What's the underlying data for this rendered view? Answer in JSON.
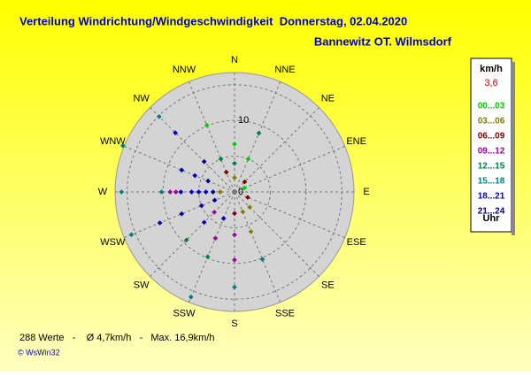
{
  "header": {
    "title": "Verteilung Windrichtung/Windgeschwindigkeit  Donnerstag, 02.04.2020",
    "station": "Bannewitz OT. Wilmsdorf"
  },
  "chart_data": {
    "type": "windrose",
    "directions": [
      "N",
      "NNE",
      "NE",
      "ENE",
      "E",
      "ESE",
      "SE",
      "SSE",
      "S",
      "SSW",
      "SW",
      "WSW",
      "W",
      "WNW",
      "NW",
      "NNW"
    ],
    "rlim": [
      0,
      16.7
    ],
    "rticks": [
      0,
      10
    ],
    "rgrid": [
      5,
      10,
      15
    ],
    "points": {
      "dir_index": [
        12,
        12,
        12,
        12,
        12,
        12,
        12,
        12,
        12,
        12,
        13,
        13,
        13,
        13,
        14,
        14,
        14,
        15,
        15,
        15,
        0,
        0,
        0,
        1,
        1,
        11,
        11,
        11,
        11,
        11,
        10,
        10,
        10,
        9,
        9,
        9,
        9,
        8,
        8,
        8,
        8,
        7,
        7,
        7,
        6,
        5,
        3,
        2
      ],
      "speed": [
        15.8,
        10.2,
        9.0,
        8.2,
        7.5,
        6.0,
        5.0,
        4.0,
        3.0,
        2.0,
        16.9,
        8.0,
        6.0,
        4.0,
        14.9,
        11.7,
        6.0,
        10.1,
        5.0,
        3.0,
        6.7,
        4.0,
        2.0,
        8.9,
        5.0,
        15.6,
        11.3,
        8.0,
        5.0,
        3.0,
        9.5,
        6.0,
        4.0,
        15.9,
        9.8,
        7.0,
        4.0,
        13.3,
        9.5,
        6.0,
        3.0,
        10.2,
        6.0,
        3.0,
        3.0,
        2.0,
        1.5,
        2.0
      ],
      "bin": [
        5,
        5,
        3,
        3,
        6,
        6,
        6,
        6,
        7,
        1,
        5,
        6,
        6,
        7,
        5,
        6,
        7,
        0,
        4,
        2,
        0,
        4,
        1,
        4,
        0,
        5,
        6,
        6,
        6,
        7,
        4,
        6,
        3,
        5,
        4,
        3,
        6,
        5,
        3,
        3,
        2,
        5,
        1,
        1,
        1,
        2,
        0,
        2
      ]
    },
    "legend": {
      "unit": "km/h",
      "current": "3,6",
      "bins": [
        "00...03",
        "03...06",
        "06...09",
        "09...12",
        "12...15",
        "15...18",
        "18...21",
        "21...24"
      ],
      "colors": [
        "#00d000",
        "#808000",
        "#800000",
        "#a000a0",
        "#008040",
        "#008080",
        "#0000c0",
        "#000080"
      ],
      "time_label": "Uhr"
    }
  },
  "footer": {
    "summary": "288 Werte   -    Ø 4,7km/h   -   Max. 16,9km/h",
    "copyright": "© WsWin32"
  }
}
